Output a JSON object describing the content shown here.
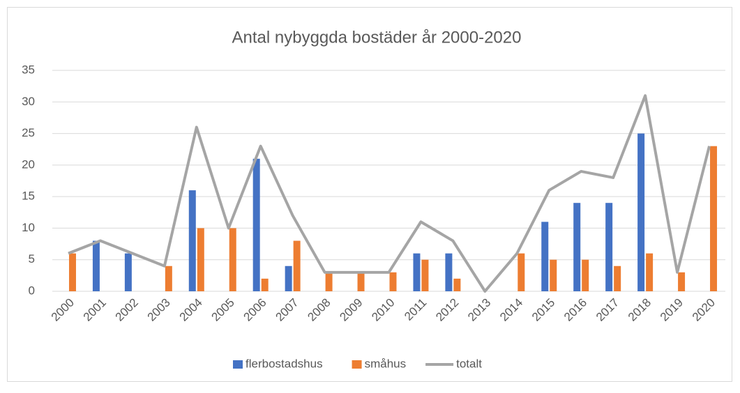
{
  "chart_data": {
    "type": "bar_line",
    "title": "Antal nybyggda bostäder år 2000-2020",
    "categories": [
      "2000",
      "2001",
      "2002",
      "2003",
      "2004",
      "2005",
      "2006",
      "2007",
      "2008",
      "2009",
      "2010",
      "2011",
      "2012",
      "2013",
      "2014",
      "2015",
      "2016",
      "2017",
      "2018",
      "2019",
      "2020"
    ],
    "series": [
      {
        "name": "flerbostadshus",
        "type": "bar",
        "color": "#4472c4",
        "values": [
          0,
          8,
          6,
          0,
          16,
          0,
          21,
          4,
          0,
          0,
          0,
          6,
          6,
          0,
          0,
          11,
          14,
          14,
          25,
          0,
          0
        ]
      },
      {
        "name": "småhus",
        "type": "bar",
        "color": "#ed7d31",
        "values": [
          6,
          0,
          0,
          4,
          10,
          10,
          2,
          8,
          3,
          3,
          3,
          5,
          2,
          0,
          6,
          5,
          5,
          4,
          6,
          3,
          23
        ]
      },
      {
        "name": "totalt",
        "type": "line",
        "color": "#a5a5a5",
        "values": [
          6,
          8,
          6,
          4,
          26,
          10,
          23,
          12,
          3,
          3,
          3,
          11,
          8,
          0,
          6,
          16,
          19,
          18,
          31,
          3,
          23
        ]
      }
    ],
    "ylim": [
      0,
      35
    ],
    "yticks": [
      0,
      5,
      10,
      15,
      20,
      25,
      30,
      35
    ],
    "grid": true,
    "legend": "bottom"
  }
}
